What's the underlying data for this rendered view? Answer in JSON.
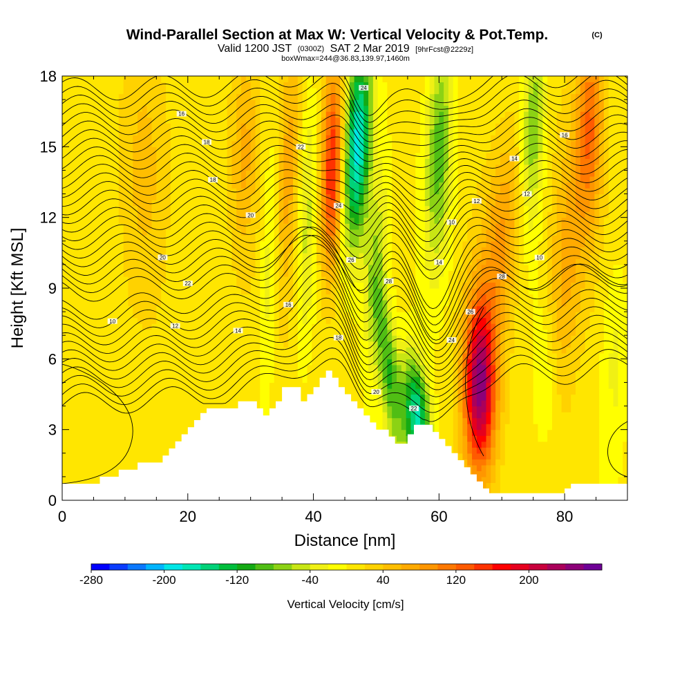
{
  "chart_data": {
    "type": "heatmap",
    "title_main": "Wind-Parallel Section at Max W: Vertical Velocity & Pot.Temp.",
    "title_mark": "(C)",
    "subtitle_a": "Valid 1200 JST",
    "subtitle_b": "(0300Z)",
    "subtitle_c": "SAT 2 Mar 2019",
    "subtitle_d": "[9hrFcst@2229z]",
    "subtitle2": "boxWmax=244@36.83,139.97,1460m",
    "xlabel": "Distance [nm]",
    "ylabel": "Height [Kft MSL]",
    "xlim": [
      0,
      90
    ],
    "ylim": [
      0,
      18
    ],
    "x_ticks": [
      "0",
      "20",
      "40",
      "60",
      "80"
    ],
    "y_ticks": [
      "0",
      "3",
      "6",
      "9",
      "12",
      "15",
      "18"
    ],
    "colorbar_label": "Vertical Velocity [cm/s]",
    "colorbar_ticks": [
      "-280",
      "-200",
      "-120",
      "-40",
      "40",
      "120",
      "200"
    ],
    "colorbar_range": [
      -280,
      280
    ],
    "colors": [
      "#0000ff",
      "#0a3cff",
      "#0a78ff",
      "#00b4ff",
      "#00e6e6",
      "#00e6b4",
      "#00d278",
      "#00be3c",
      "#14aa14",
      "#50be14",
      "#8cd214",
      "#c8e614",
      "#f0f014",
      "#ffff00",
      "#ffe600",
      "#ffd200",
      "#ffbe00",
      "#ffaa00",
      "#ff9600",
      "#ff7800",
      "#ff5a00",
      "#ff3200",
      "#ff0000",
      "#e6001e",
      "#c8003c",
      "#aa005a",
      "#8c0078",
      "#6e0096"
    ],
    "terrain_heights_kft": [
      0.7,
      0.7,
      0.7,
      0.7,
      0.7,
      0.7,
      1.0,
      1.0,
      1.0,
      1.3,
      1.3,
      1.3,
      1.6,
      1.6,
      1.6,
      1.6,
      1.9,
      2.2,
      2.5,
      2.8,
      3.1,
      3.4,
      3.7,
      3.9,
      3.9,
      3.9,
      3.9,
      3.9,
      4.2,
      4.2,
      4.2,
      3.9,
      3.6,
      3.9,
      4.2,
      4.8,
      4.8,
      4.8,
      4.2,
      4.5,
      4.8,
      5.2,
      5.5,
      5.2,
      4.8,
      4.5,
      4.2,
      3.9,
      3.6,
      3.3,
      3.0,
      3.0,
      2.7,
      2.4,
      2.4,
      2.8,
      3.2,
      3.2,
      3.2,
      2.9,
      2.6,
      2.3,
      2.0,
      1.7,
      1.4,
      1.1,
      0.8,
      0.5,
      0.3,
      0.3,
      0.3,
      0.3,
      0.3,
      0.3,
      0.3,
      0.3,
      0.3,
      0.3,
      0.3,
      0.3,
      0.5,
      0.7,
      0.7,
      0.7,
      0.7,
      0.7,
      0.7,
      0.7,
      0.7,
      0.7,
      0.7
    ],
    "theta_labels": [
      "10",
      "12",
      "14",
      "16",
      "18",
      "20",
      "22",
      "24",
      "26",
      "28"
    ],
    "w_features": [
      {
        "x": 43,
        "z": 14,
        "w": 160,
        "sx": 1.2,
        "sz": 3.0,
        "tilt": 0.1
      },
      {
        "x": 47,
        "z": 15,
        "w": -200,
        "sx": 1.5,
        "sz": 3.0,
        "tilt": 0.15
      },
      {
        "x": 56.5,
        "z": 3.5,
        "w": -180,
        "sx": 1.5,
        "sz": 1.8,
        "tilt": -0.3
      },
      {
        "x": 52,
        "z": 5.5,
        "w": -110,
        "sx": 1.2,
        "sz": 2.5,
        "tilt": -0.4
      },
      {
        "x": 66.5,
        "z": 4.8,
        "w": 244,
        "sx": 1.8,
        "sz": 2.6,
        "tilt": 0
      },
      {
        "x": 60,
        "z": 15,
        "w": -100,
        "sx": 1.5,
        "sz": 3.5,
        "tilt": 0.1
      },
      {
        "x": 75,
        "z": 16,
        "w": -90,
        "sx": 1.3,
        "sz": 3.0,
        "tilt": 0.15
      },
      {
        "x": 84,
        "z": 16,
        "w": 110,
        "sx": 1.5,
        "sz": 3.0,
        "tilt": 0.1
      },
      {
        "x": 36,
        "z": 14,
        "w": 60,
        "sx": 1.2,
        "sz": 4.0,
        "tilt": 0.1
      },
      {
        "x": 39,
        "z": 12,
        "w": -50,
        "sx": 1.0,
        "sz": 4.0,
        "tilt": 0.1
      },
      {
        "x": 29,
        "z": 15,
        "w": 55,
        "sx": 1.5,
        "sz": 3.0,
        "tilt": 0.1
      },
      {
        "x": 33,
        "z": 10,
        "w": -45,
        "sx": 1.0,
        "sz": 3.5,
        "tilt": 0.1
      },
      {
        "x": 70,
        "z": 11,
        "w": 70,
        "sx": 2.0,
        "sz": 3.0,
        "tilt": 0.3
      },
      {
        "x": 77,
        "z": 5,
        "w": -40,
        "sx": 1.5,
        "sz": 2.5,
        "tilt": 0
      },
      {
        "x": 80,
        "z": 10,
        "w": 60,
        "sx": 2.0,
        "sz": 4.0,
        "tilt": 0.2
      },
      {
        "x": 13,
        "z": 15,
        "w": 35,
        "sx": 2.5,
        "sz": 4.0,
        "tilt": 0
      },
      {
        "x": 88,
        "z": 6,
        "w": -35,
        "sx": 1.5,
        "sz": 3.0,
        "tilt": 0
      },
      {
        "x": 50,
        "z": 10,
        "w": -70,
        "sx": 1.3,
        "sz": 3.0,
        "tilt": 0.2
      }
    ]
  }
}
